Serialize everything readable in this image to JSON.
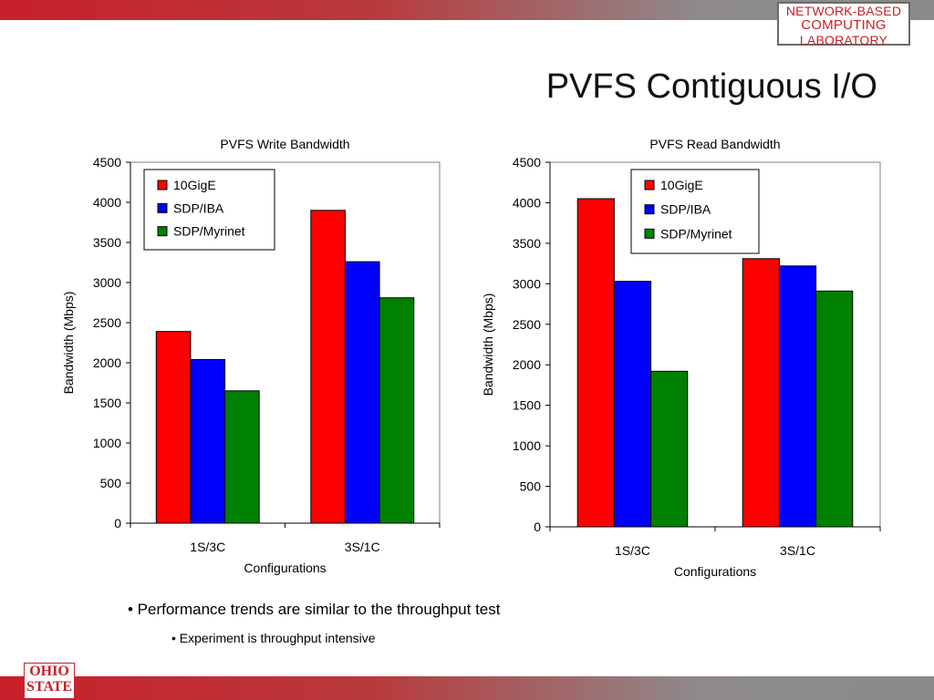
{
  "header": {
    "logo_lines": [
      "NETWORK-BASED",
      "COMPUTING",
      "LABORATORY"
    ],
    "title": "PVFS Contiguous I/O"
  },
  "bullets": {
    "main": "• Performance trends are similar to the throughput test",
    "sub": "• Experiment is throughput intensive"
  },
  "footer": {
    "logo_lines": [
      "OHIO",
      "STATE"
    ]
  },
  "colors": {
    "10GigE": "#ff0000",
    "SDP/IBA": "#0000ff",
    "SDP/Myrinet": "#008000",
    "accent": "#c8202a"
  },
  "chart_data": [
    {
      "type": "bar",
      "title": "PVFS Write Bandwidth",
      "xlabel": "Configurations",
      "ylabel": "Bandwidth (Mbps)",
      "categories": [
        "1S/3C",
        "3S/1C"
      ],
      "ylim": [
        0,
        4500
      ],
      "yticks": [
        0,
        500,
        1000,
        1500,
        2000,
        2500,
        3000,
        3500,
        4000,
        4500
      ],
      "legend_position": "top-left",
      "grid": false,
      "series": [
        {
          "name": "10GigE",
          "values": [
            2390,
            3900
          ]
        },
        {
          "name": "SDP/IBA",
          "values": [
            2040,
            3260
          ]
        },
        {
          "name": "SDP/Myrinet",
          "values": [
            1650,
            2810
          ]
        }
      ]
    },
    {
      "type": "bar",
      "title": "PVFS Read Bandwidth",
      "xlabel": "Configurations",
      "ylabel": "Bandwidth (Mbps)",
      "categories": [
        "1S/3C",
        "3S/1C"
      ],
      "ylim": [
        0,
        4500
      ],
      "yticks": [
        0,
        500,
        1000,
        1500,
        2000,
        2500,
        3000,
        3500,
        4000,
        4500
      ],
      "legend_position": "top-center",
      "grid": false,
      "series": [
        {
          "name": "10GigE",
          "values": [
            4050,
            3310
          ]
        },
        {
          "name": "SDP/IBA",
          "values": [
            3030,
            3220
          ]
        },
        {
          "name": "SDP/Myrinet",
          "values": [
            1920,
            2910
          ]
        }
      ]
    }
  ]
}
